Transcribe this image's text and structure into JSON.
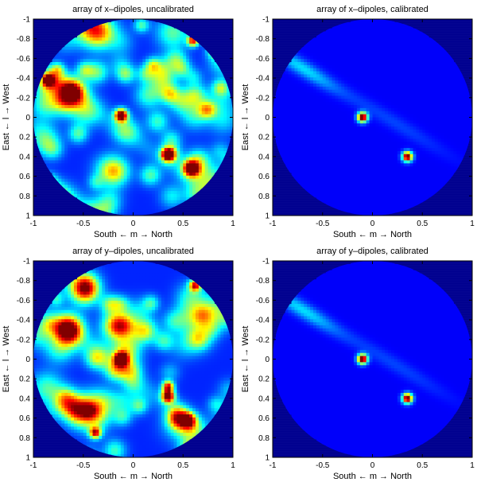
{
  "chart_data": [
    {
      "type": "heatmap",
      "title": "array of x–dipoles, uncalibrated",
      "xlabel": "South ← m → North",
      "ylabel": "East ← l → West",
      "xlim": [
        -1,
        1
      ],
      "ylim": [
        -1,
        1
      ],
      "y_reversed": true,
      "xticks": [
        "-1",
        "-0.5",
        "0",
        "0.5",
        "1"
      ],
      "yticks": [
        "-1",
        "-0.8",
        "-0.6",
        "-0.4",
        "-0.2",
        "0",
        "0.2",
        "0.4",
        "0.6",
        "0.8",
        "1"
      ],
      "background": "noisy",
      "sources": [
        {
          "m": -0.62,
          "l": -0.25,
          "peak": 0.85,
          "width": 0.1
        },
        {
          "m": -0.85,
          "l": -0.38,
          "peak": 0.75,
          "width": 0.04
        },
        {
          "m": -0.12,
          "l": -0.02,
          "peak": 0.95,
          "width": 0.045
        },
        {
          "m": 0.35,
          "l": 0.38,
          "peak": 0.9,
          "width": 0.045
        },
        {
          "m": 0.58,
          "l": 0.52,
          "peak": 0.75,
          "width": 0.05
        },
        {
          "m": 0.6,
          "l": -0.78,
          "peak": 0.7,
          "width": 0.04
        }
      ]
    },
    {
      "type": "heatmap",
      "title": "array of x–dipoles, calibrated",
      "xlabel": "South ← m → North",
      "ylabel": "East ← l → West",
      "xlim": [
        -1,
        1
      ],
      "ylim": [
        -1,
        1
      ],
      "y_reversed": true,
      "xticks": [
        "-1",
        "-0.5",
        "0",
        "0.5",
        "1"
      ],
      "yticks": [
        "-1",
        "-0.8",
        "-0.6",
        "-0.4",
        "-0.2",
        "0",
        "0.2",
        "0.4",
        "0.6",
        "0.8",
        "1"
      ],
      "background": "smooth",
      "sources": [
        {
          "m": -0.1,
          "l": 0.0,
          "peak": 1.0,
          "width": 0.035
        },
        {
          "m": 0.35,
          "l": 0.4,
          "peak": 1.0,
          "width": 0.035
        }
      ]
    },
    {
      "type": "heatmap",
      "title": "array of y–dipoles, uncalibrated",
      "xlabel": "South ← m → North",
      "ylabel": "East ← l → West",
      "xlim": [
        -1,
        1
      ],
      "ylim": [
        -1,
        1
      ],
      "y_reversed": true,
      "xticks": [
        "-1",
        "-0.5",
        "0",
        "0.5",
        "1"
      ],
      "yticks": [
        "-1",
        "-0.8",
        "-0.6",
        "-0.4",
        "-0.2",
        "0",
        "0.2",
        "0.4",
        "0.6",
        "0.8",
        "1"
      ],
      "background": "noisy",
      "sources": [
        {
          "m": -0.65,
          "l": -0.3,
          "peak": 0.95,
          "width": 0.1
        },
        {
          "m": -0.12,
          "l": 0.0,
          "peak": 0.95,
          "width": 0.045
        },
        {
          "m": 0.35,
          "l": 0.38,
          "peak": 0.9,
          "width": 0.045
        },
        {
          "m": 0.35,
          "l": 0.28,
          "peak": 0.7,
          "width": 0.04
        },
        {
          "m": -0.38,
          "l": 0.75,
          "peak": 0.7,
          "width": 0.04
        },
        {
          "m": 0.62,
          "l": -0.75,
          "peak": 0.7,
          "width": 0.04
        },
        {
          "m": 0.55,
          "l": 0.62,
          "peak": 0.65,
          "width": 0.05
        }
      ]
    },
    {
      "type": "heatmap",
      "title": "array of y–dipoles, calibrated",
      "xlabel": "South ← m → North",
      "ylabel": "East ← l → West",
      "xlim": [
        -1,
        1
      ],
      "ylim": [
        -1,
        1
      ],
      "y_reversed": true,
      "xticks": [
        "-1",
        "-0.5",
        "0",
        "0.5",
        "1"
      ],
      "yticks": [
        "-1",
        "-0.8",
        "-0.6",
        "-0.4",
        "-0.2",
        "0",
        "0.2",
        "0.4",
        "0.6",
        "0.8",
        "1"
      ],
      "background": "smooth",
      "sources": [
        {
          "m": -0.1,
          "l": 0.0,
          "peak": 1.0,
          "width": 0.035
        },
        {
          "m": 0.35,
          "l": 0.4,
          "peak": 1.0,
          "width": 0.035
        }
      ]
    }
  ],
  "colors": {
    "background": "#00008f",
    "colormap": "jet"
  }
}
